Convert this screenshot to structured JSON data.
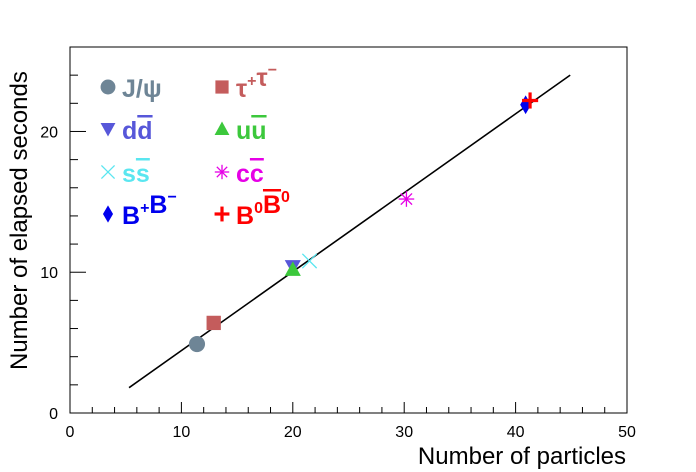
{
  "chart_data": {
    "type": "scatter",
    "title": "",
    "xlabel": "Number of particles",
    "ylabel": "Number of elapsed seconds",
    "xlim": [
      0,
      50
    ],
    "ylim": [
      0,
      26
    ],
    "x_ticks": [
      0,
      10,
      20,
      30,
      40,
      50
    ],
    "y_ticks": [
      0,
      10,
      20
    ],
    "grid": false,
    "legend_position": "top-left",
    "fit_line": {
      "x": [
        5.3,
        44.9
      ],
      "y": [
        1.8,
        24.0
      ],
      "color": "#000000"
    },
    "series": [
      {
        "name": "J/ψ",
        "label": {
          "main": "J/ψ"
        },
        "marker": "circle",
        "color": "#6e8596",
        "points": [
          [
            11.4,
            4.9
          ]
        ]
      },
      {
        "name": "τ⁺τ⁻",
        "label": {
          "main": "τ",
          "sup1": "+",
          "main2": "τ",
          "sup2": "−"
        },
        "marker": "square",
        "color": "#c45c5c",
        "points": [
          [
            12.9,
            6.4
          ]
        ]
      },
      {
        "name": "dd̅",
        "label": {
          "main": "d",
          "over": "d"
        },
        "marker": "triangle-down",
        "color": "#5757d9",
        "points": [
          [
            20.0,
            10.4
          ]
        ]
      },
      {
        "name": "uu̅",
        "label": {
          "main": "u",
          "over": "u"
        },
        "marker": "triangle-up",
        "color": "#3cc83c",
        "points": [
          [
            20.0,
            10.2
          ]
        ]
      },
      {
        "name": "ss̅",
        "label": {
          "main": "s",
          "over": "s"
        },
        "marker": "cross",
        "color": "#5ae6f0",
        "points": [
          [
            21.5,
            10.8
          ]
        ]
      },
      {
        "name": "cc̅",
        "label": {
          "main": "c",
          "over": "c"
        },
        "marker": "asterisk",
        "color": "#e600e6",
        "points": [
          [
            30.2,
            15.2
          ]
        ]
      },
      {
        "name": "B⁺B⁻",
        "label": {
          "main": "B",
          "sup1": "+",
          "main2": "B",
          "sup2": "−"
        },
        "marker": "diamond",
        "color": "#0000ee",
        "points": [
          [
            40.9,
            21.9
          ]
        ]
      },
      {
        "name": "B⁰B̅⁰",
        "label": {
          "main": "B",
          "sup1": "0",
          "over": "B",
          "sup2": "0"
        },
        "marker": "plus",
        "color": "#ff0000",
        "points": [
          [
            41.3,
            22.2
          ]
        ]
      }
    ]
  }
}
